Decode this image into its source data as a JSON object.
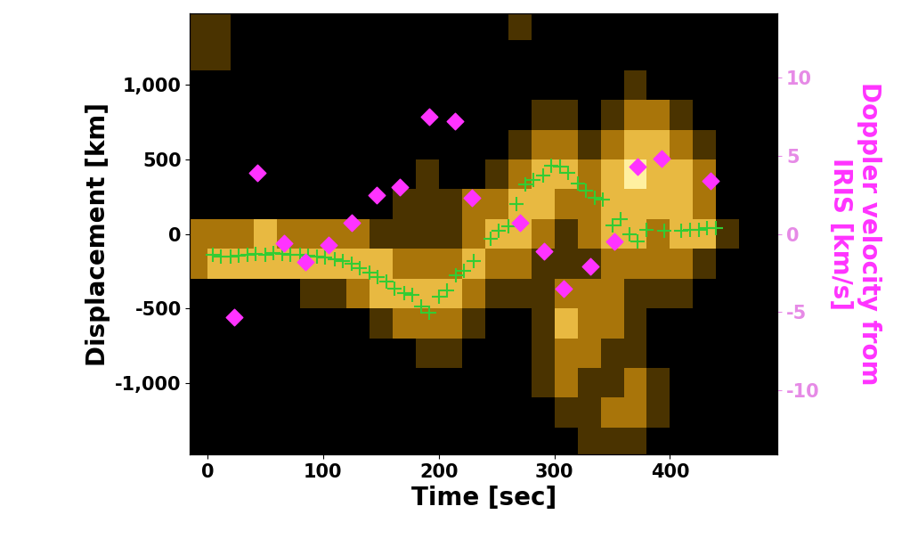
{
  "chart_data": {
    "type": "scatter",
    "x_label": "Time [sec]",
    "y_label": "Displacement [km]",
    "y2_label": "Doppler velocity from\nIRIS [km/s]",
    "xlim": [
      -15,
      493
    ],
    "xticks": [
      0,
      100,
      200,
      300,
      400
    ],
    "ylim": [
      -1480,
      1480
    ],
    "yticks": [
      {
        "value": -1000,
        "label": "-1,000"
      },
      -500,
      0,
      500,
      {
        "value": 1000,
        "label": "1,000"
      }
    ],
    "y2lim": [
      -14.1,
      14.1
    ],
    "y2ticks": [
      -10,
      -5,
      0,
      5,
      10
    ],
    "heatmap": {
      "cell_x_edges": [
        -20,
        0,
        20,
        40,
        60,
        80,
        100,
        120,
        140,
        160,
        180,
        200,
        220,
        240,
        260,
        280,
        300,
        320,
        340,
        360,
        380,
        400,
        420,
        440,
        460,
        480,
        500
      ],
      "cell_y_edges": [
        1500,
        1300,
        1100,
        900,
        700,
        500,
        300,
        100,
        -100,
        -300,
        -500,
        -700,
        -900,
        -1100,
        -1300,
        -1500
      ],
      "cell_range": [
        0,
        4
      ],
      "cells": [
        [
          1,
          1,
          0,
          0,
          0,
          0,
          0,
          0,
          0,
          0,
          0,
          0,
          0,
          0,
          1,
          0,
          0,
          0,
          0,
          0,
          0,
          0,
          0,
          0,
          0,
          0
        ],
        [
          1,
          1,
          0,
          0,
          0,
          0,
          0,
          0,
          0,
          0,
          0,
          0,
          0,
          0,
          0,
          0,
          0,
          0,
          0,
          0,
          0,
          0,
          0,
          0,
          0,
          0
        ],
        [
          0,
          0,
          0,
          0,
          0,
          0,
          0,
          0,
          0,
          0,
          0,
          0,
          0,
          0,
          0,
          0,
          0,
          0,
          0,
          1,
          0,
          0,
          0,
          0,
          0,
          0
        ],
        [
          0,
          0,
          0,
          0,
          0,
          0,
          0,
          0,
          0,
          0,
          0,
          0,
          0,
          0,
          0,
          1,
          1,
          0,
          1,
          2,
          2,
          1,
          0,
          0,
          0,
          0
        ],
        [
          0,
          0,
          0,
          0,
          0,
          0,
          0,
          0,
          0,
          0,
          0,
          0,
          0,
          0,
          1,
          2,
          2,
          1,
          2,
          3,
          3,
          2,
          1,
          0,
          0,
          0
        ],
        [
          0,
          0,
          0,
          0,
          0,
          0,
          0,
          0,
          0,
          0,
          1,
          0,
          0,
          1,
          2,
          3,
          3,
          2,
          3,
          4,
          3,
          3,
          2,
          0,
          0,
          0
        ],
        [
          0,
          0,
          0,
          0,
          0,
          0,
          0,
          0,
          0,
          1,
          1,
          1,
          2,
          2,
          3,
          3,
          2,
          2,
          3,
          3,
          3,
          3,
          2,
          0,
          0,
          0
        ],
        [
          2,
          2,
          2,
          3,
          2,
          2,
          2,
          2,
          1,
          1,
          1,
          1,
          2,
          3,
          3,
          2,
          1,
          2,
          3,
          3,
          2,
          3,
          3,
          1,
          0,
          0
        ],
        [
          2,
          3,
          3,
          3,
          3,
          3,
          3,
          3,
          3,
          2,
          2,
          2,
          3,
          2,
          2,
          1,
          1,
          1,
          2,
          2,
          2,
          2,
          1,
          0,
          0,
          0
        ],
        [
          0,
          0,
          0,
          0,
          0,
          1,
          1,
          2,
          3,
          3,
          3,
          3,
          2,
          1,
          1,
          1,
          2,
          2,
          2,
          1,
          1,
          1,
          0,
          0,
          0,
          0
        ],
        [
          0,
          0,
          0,
          0,
          0,
          0,
          0,
          0,
          1,
          2,
          2,
          2,
          1,
          0,
          0,
          1,
          3,
          2,
          2,
          1,
          0,
          0,
          0,
          0,
          0,
          0
        ],
        [
          0,
          0,
          0,
          0,
          0,
          0,
          0,
          0,
          0,
          0,
          1,
          1,
          0,
          0,
          0,
          1,
          2,
          2,
          1,
          1,
          0,
          0,
          0,
          0,
          0,
          0
        ],
        [
          0,
          0,
          0,
          0,
          0,
          0,
          0,
          0,
          0,
          0,
          0,
          0,
          0,
          0,
          0,
          1,
          2,
          1,
          1,
          2,
          1,
          0,
          0,
          0,
          0,
          0
        ],
        [
          0,
          0,
          0,
          0,
          0,
          0,
          0,
          0,
          0,
          0,
          0,
          0,
          0,
          0,
          0,
          0,
          1,
          1,
          2,
          2,
          1,
          0,
          0,
          0,
          0,
          0
        ],
        [
          0,
          0,
          0,
          0,
          0,
          0,
          0,
          0,
          0,
          0,
          0,
          0,
          0,
          0,
          0,
          0,
          0,
          1,
          1,
          1,
          0,
          0,
          0,
          0,
          0,
          0
        ]
      ]
    },
    "series": [
      {
        "type": "scatter",
        "marker": "plus",
        "color": "#33cc33",
        "x": [
          5,
          12,
          20,
          27,
          35,
          42,
          50,
          57,
          65,
          72,
          80,
          87,
          95,
          102,
          110,
          117,
          125,
          132,
          140,
          147,
          155,
          162,
          170,
          177,
          185,
          192,
          200,
          207,
          215,
          222,
          230,
          245,
          252,
          260,
          267,
          275,
          282,
          290,
          297,
          305,
          312,
          320,
          327,
          335,
          342,
          350,
          357,
          365,
          372,
          380,
          395,
          410,
          417,
          425,
          432,
          440
        ],
        "values": [
          -140,
          -150,
          -150,
          -145,
          -140,
          -135,
          -140,
          -130,
          -135,
          -140,
          -140,
          -145,
          -150,
          -160,
          -170,
          -180,
          -200,
          -230,
          -260,
          -290,
          -320,
          -370,
          -400,
          -410,
          -490,
          -530,
          -420,
          -380,
          -280,
          -250,
          -180,
          -30,
          20,
          50,
          200,
          330,
          360,
          390,
          460,
          450,
          410,
          340,
          290,
          240,
          230,
          60,
          100,
          0,
          -50,
          30,
          20,
          20,
          30,
          30,
          40,
          40
        ]
      },
      {
        "type": "scatter",
        "marker": "diamond",
        "color": "#ff33ff",
        "axis": "y2",
        "x": [
          23,
          43,
          66,
          85,
          105,
          125,
          146,
          166,
          192,
          214,
          229,
          270,
          291,
          308,
          331,
          352,
          372,
          393,
          435
        ],
        "values": [
          -5.3,
          3.9,
          -0.6,
          -1.8,
          -0.7,
          0.7,
          2.5,
          3.0,
          7.5,
          7.2,
          2.3,
          0.7,
          -1.1,
          -3.5,
          -2.1,
          -0.5,
          4.3,
          4.8,
          3.4
        ]
      }
    ]
  }
}
